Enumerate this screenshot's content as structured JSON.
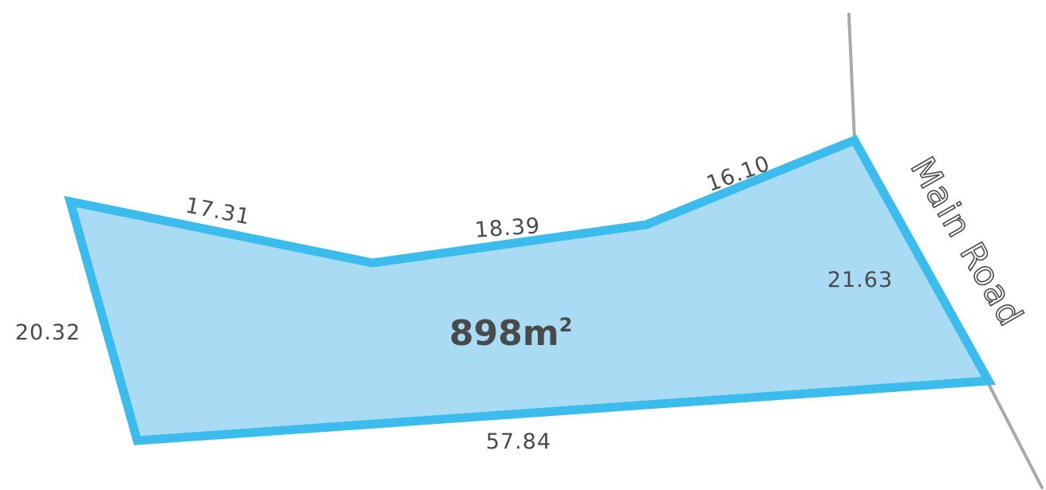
{
  "colors": {
    "lot_fill": "#a9dcf4",
    "lot_outline": "#3bbcec",
    "road_line": "#a9a9a9",
    "label_text": "#4a4a4a"
  },
  "lot": {
    "area_value": "898m",
    "area_superscript": "2",
    "boundary_lengths": {
      "top_left": "17.31",
      "top_middle": "18.39",
      "top_right": "16.10",
      "right": "21.63",
      "bottom": "57.84",
      "left": "20.32"
    }
  },
  "road": {
    "name": "Main Road"
  }
}
